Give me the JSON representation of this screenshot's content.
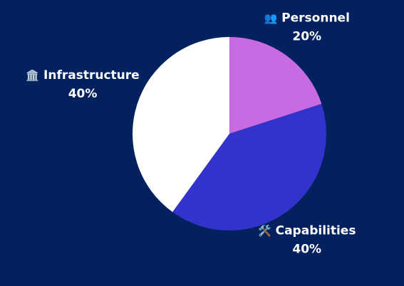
{
  "chart_data": {
    "type": "pie",
    "categories": [
      "Personnel",
      "Capabilities",
      "Infrastructure"
    ],
    "icons": [
      "👥",
      "🛠️",
      "🏛️"
    ],
    "values": [
      20,
      40,
      40
    ],
    "value_labels": [
      "20%",
      "40%",
      "40%"
    ],
    "colors": [
      "#c86be3",
      "#3333cc",
      "#ffffff"
    ]
  }
}
